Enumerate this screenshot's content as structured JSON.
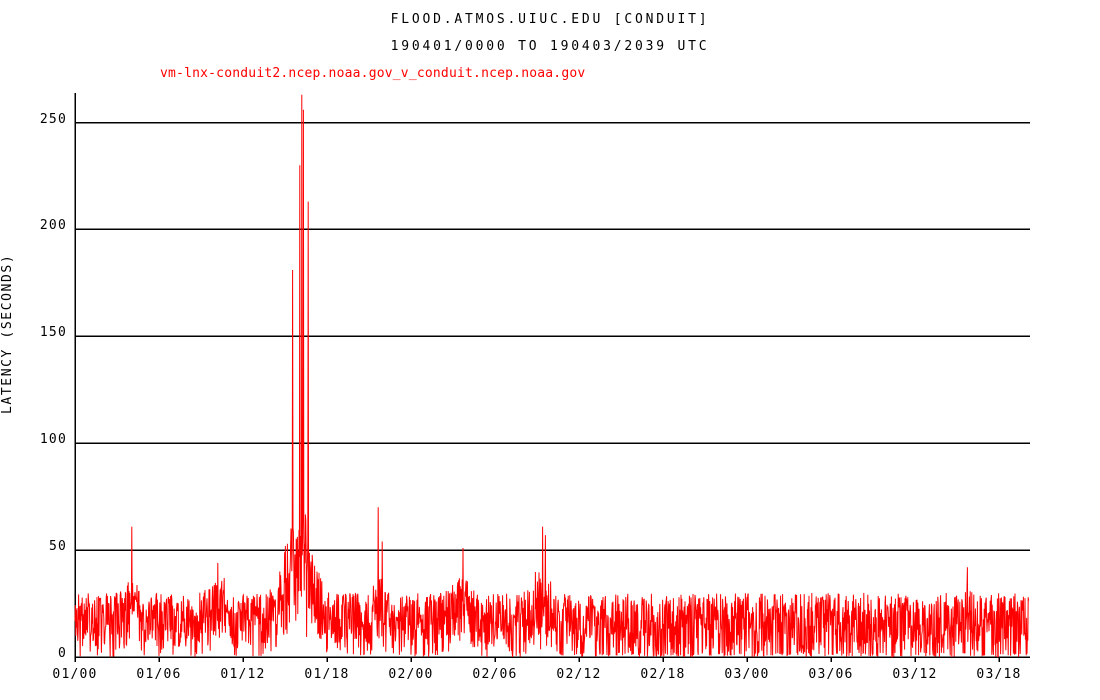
{
  "chart_data": {
    "type": "line",
    "title": "FLOOD.ATMOS.UIUC.EDU [CONDUIT]",
    "subtitle": "190401/0000 TO 190403/2039 UTC",
    "legend": "vm-lnx-conduit2.ncep.noaa.gov_v_conduit.ncep.noaa.gov",
    "ylabel": "LATENCY (SECONDS)",
    "xlabel": "",
    "series_color": "#ff0000",
    "axis_color": "#000000",
    "grid": "horizontal",
    "y_ticks": [
      0,
      50,
      100,
      150,
      200,
      250
    ],
    "ylim": [
      0,
      265
    ],
    "x_ticks": [
      "01/00",
      "01/06",
      "01/12",
      "01/18",
      "02/00",
      "02/06",
      "02/12",
      "02/18",
      "03/00",
      "03/06",
      "03/12",
      "03/18"
    ],
    "x_tick_interval_hours": 6,
    "x_range_hours": [
      0,
      68.1
    ],
    "baseline_noise": {
      "min_seconds": 0,
      "max_seconds": 30,
      "note": "dense latency noise oscillating between ~0 and ~30 s across the whole time span; dropouts to 0 more frequent after 02/13"
    },
    "bumps": [
      {
        "hour": 4.05,
        "halfwidth": 0.35,
        "amplitude": 14
      },
      {
        "hour": 10.2,
        "halfwidth": 0.5,
        "amplitude": 13
      },
      {
        "hour": 16.0,
        "halfwidth": 0.8,
        "amplitude": 56
      },
      {
        "hour": 21.7,
        "halfwidth": 0.3,
        "amplitude": 10
      },
      {
        "hour": 27.6,
        "halfwidth": 0.6,
        "amplitude": 12
      },
      {
        "hour": 33.3,
        "halfwidth": 0.5,
        "amplitude": 17
      },
      {
        "hour": 63.7,
        "halfwidth": 0.2,
        "amplitude": 6
      }
    ],
    "spikes": [
      {
        "hour": 4.05,
        "peak_seconds": 61
      },
      {
        "hour": 10.2,
        "peak_seconds": 44
      },
      {
        "hour": 15.55,
        "peak_seconds": 181
      },
      {
        "hour": 16.05,
        "peak_seconds": 230
      },
      {
        "hour": 16.2,
        "peak_seconds": 263
      },
      {
        "hour": 16.3,
        "peak_seconds": 256
      },
      {
        "hour": 16.65,
        "peak_seconds": 213
      },
      {
        "hour": 21.65,
        "peak_seconds": 70
      },
      {
        "hour": 21.95,
        "peak_seconds": 54
      },
      {
        "hour": 27.7,
        "peak_seconds": 51
      },
      {
        "hour": 33.4,
        "peak_seconds": 61
      },
      {
        "hour": 33.6,
        "peak_seconds": 57
      },
      {
        "hour": 63.75,
        "peak_seconds": 42
      }
    ]
  }
}
